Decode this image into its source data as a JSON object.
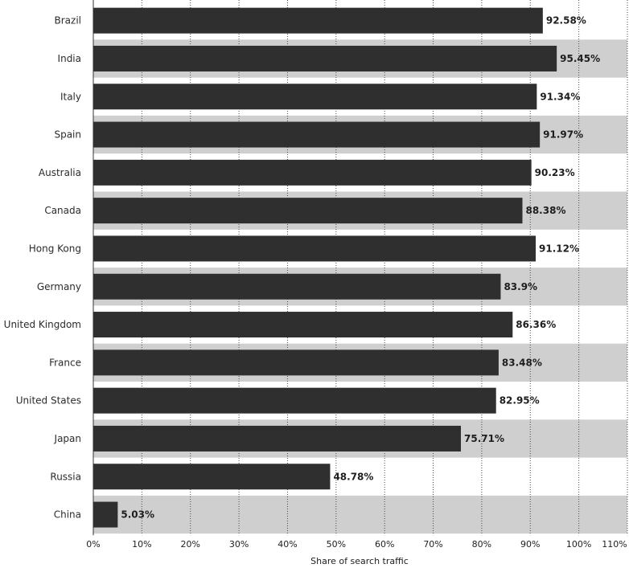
{
  "chart_data": {
    "type": "bar",
    "orientation": "horizontal",
    "categories": [
      "Brazil",
      "India",
      "Italy",
      "Spain",
      "Australia",
      "Canada",
      "Hong Kong",
      "Germany",
      "United Kingdom",
      "France",
      "United States",
      "Japan",
      "Russia",
      "China"
    ],
    "values": [
      92.58,
      95.45,
      91.34,
      91.97,
      90.23,
      88.38,
      91.12,
      83.9,
      86.36,
      83.48,
      82.95,
      75.71,
      48.78,
      5.03
    ],
    "value_labels": [
      "92.58%",
      "95.45%",
      "91.34%",
      "91.97%",
      "90.23%",
      "88.38%",
      "91.12%",
      "83.9%",
      "86.36%",
      "83.48%",
      "82.95%",
      "75.71%",
      "48.78%",
      "5.03%"
    ],
    "xlabel": "Share of search traffic",
    "ylabel": "",
    "xlim": [
      0,
      110
    ],
    "x_ticks": [
      0,
      10,
      20,
      30,
      40,
      50,
      60,
      70,
      80,
      90,
      100,
      110
    ],
    "x_tick_labels": [
      "0%",
      "10%",
      "20%",
      "30%",
      "40%",
      "50%",
      "60%",
      "70%",
      "80%",
      "90%",
      "100%",
      "110%"
    ],
    "grid": true,
    "grid_style": "dotted vertical",
    "row_banding": true,
    "colors": {
      "bar": "#2f2f2f",
      "band": "#cfcfcf",
      "background": "#ffffff",
      "grid": "#4a4a4a"
    }
  }
}
